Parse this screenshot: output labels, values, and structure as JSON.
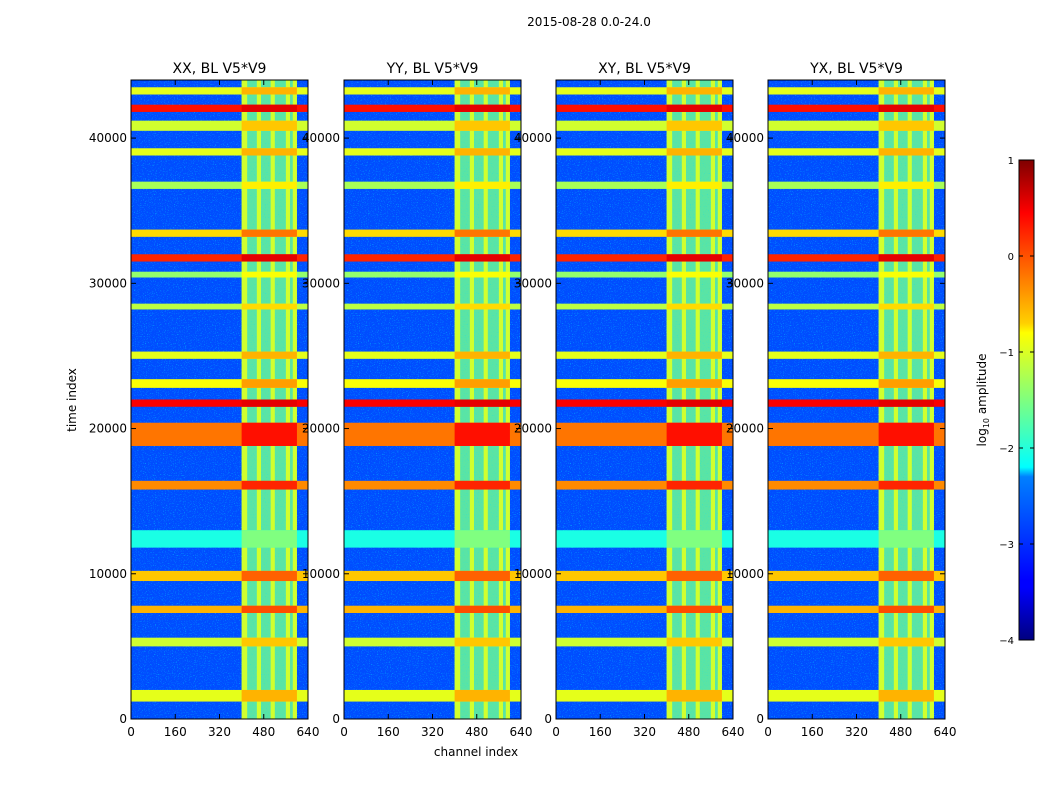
{
  "chart_data": {
    "type": "heatmap",
    "suptitle": "2015-08-28 0.0-24.0",
    "xlabel": "channel index",
    "ylabel": "time index",
    "xlim": [
      0,
      640
    ],
    "ylim": [
      0,
      44000
    ],
    "xticks": [
      0,
      160,
      320,
      480,
      640
    ],
    "yticks": [
      0,
      10000,
      20000,
      30000,
      40000
    ],
    "panels": [
      {
        "title": "XX, BL V5*V9",
        "rfi_channel_range": [
          400,
          600
        ]
      },
      {
        "title": "YY, BL V5*V9",
        "rfi_channel_range": [
          400,
          600
        ]
      },
      {
        "title": "XY, BL V5*V9",
        "rfi_channel_range": [
          400,
          600
        ]
      },
      {
        "title": "YX, BL V5*V9",
        "rfi_channel_range": [
          400,
          600
        ]
      }
    ],
    "rfi_channel_bands": [
      [
        400,
        420
      ],
      [
        455,
        470
      ],
      [
        505,
        520
      ],
      [
        560,
        575
      ],
      [
        585,
        600
      ]
    ],
    "rfi_time_bands": [
      {
        "start": 1200,
        "end": 2000,
        "level": -1
      },
      {
        "start": 5000,
        "end": 5600,
        "level": -1.1
      },
      {
        "start": 7300,
        "end": 7800,
        "level": -0.5
      },
      {
        "start": 9500,
        "end": 10200,
        "level": -0.6
      },
      {
        "start": 11800,
        "end": 13000,
        "level": -2
      },
      {
        "start": 15800,
        "end": 16400,
        "level": -0.3
      },
      {
        "start": 18800,
        "end": 20400,
        "level": -0.2
      },
      {
        "start": 21500,
        "end": 22000,
        "level": 0.4
      },
      {
        "start": 22800,
        "end": 23400,
        "level": -0.9
      },
      {
        "start": 24800,
        "end": 25300,
        "level": -1.0
      },
      {
        "start": 28200,
        "end": 28600,
        "level": -1.2
      },
      {
        "start": 30400,
        "end": 30800,
        "level": -1.4
      },
      {
        "start": 31500,
        "end": 32000,
        "level": 0.2
      },
      {
        "start": 33200,
        "end": 33700,
        "level": -0.7
      },
      {
        "start": 36500,
        "end": 37000,
        "level": -1.3
      },
      {
        "start": 38800,
        "end": 39300,
        "level": -1.0
      },
      {
        "start": 40500,
        "end": 41200,
        "level": -1.1
      },
      {
        "start": 41800,
        "end": 42300,
        "level": 0.3
      },
      {
        "start": 43000,
        "end": 43500,
        "level": -1.0
      }
    ],
    "background_level": -3,
    "colorbar": {
      "label": "log10 amplitude",
      "label_main": "log",
      "label_sub": "10",
      "label_rest": " amplitude",
      "min": -4,
      "max": 1,
      "ticks": [
        -4,
        -3,
        -2,
        -1,
        0,
        1
      ],
      "tick_labels": [
        "−4",
        "−3",
        "−2",
        "−1",
        "0",
        "1"
      ],
      "colormap": "jet"
    }
  }
}
